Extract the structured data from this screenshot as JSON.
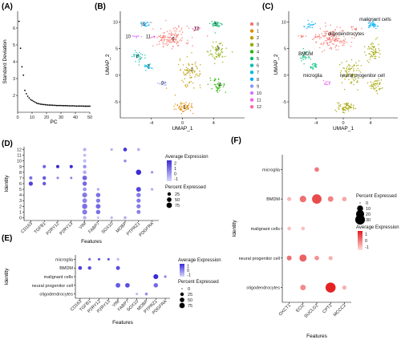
{
  "panels": {
    "a": "(A)",
    "b": "(B)",
    "c": "(C)",
    "d": "(D)",
    "e": "(E)",
    "f": "(F)"
  },
  "colors": {
    "low": "#d8d8ff",
    "high": "#3b2bd6",
    "f_low": "#fde0e0",
    "f_high": "#e31a1c",
    "cluster": [
      "#f8766d",
      "#e68613",
      "#cd9600",
      "#aba300",
      "#7cae00",
      "#0cb702",
      "#00be67",
      "#00c19a",
      "#00bfc4",
      "#00b8e7",
      "#00a9ff",
      "#8494ff",
      "#c77cff",
      "#ed68ed",
      "#ff61cc"
    ]
  },
  "chart_data": [
    {
      "panel": "A",
      "type": "scatter",
      "xlabel": "PC",
      "ylabel": "Standard Deviation",
      "xlim": [
        0,
        50
      ],
      "ylim": [
        1,
        7
      ],
      "xticks": [
        0,
        10,
        20,
        30,
        40,
        50
      ],
      "yticks": [
        2,
        3,
        4,
        5,
        6
      ],
      "x": [
        1,
        2,
        3,
        4,
        5,
        6,
        7,
        8,
        9,
        10,
        11,
        12,
        13,
        14,
        15,
        16,
        17,
        18,
        19,
        20,
        21,
        22,
        23,
        24,
        25,
        26,
        27,
        28,
        29,
        30,
        31,
        32,
        33,
        34,
        35,
        36,
        37,
        38,
        39,
        40,
        41,
        42,
        43,
        44,
        45,
        46,
        47,
        48,
        49,
        50
      ],
      "y": [
        6.4,
        4.8,
        3.7,
        3.2,
        2.3,
        2.1,
        1.95,
        1.85,
        1.75,
        1.7,
        1.65,
        1.6,
        1.55,
        1.52,
        1.5,
        1.48,
        1.47,
        1.46,
        1.45,
        1.44,
        1.43,
        1.43,
        1.42,
        1.42,
        1.41,
        1.41,
        1.4,
        1.4,
        1.4,
        1.4,
        1.39,
        1.39,
        1.39,
        1.39,
        1.38,
        1.38,
        1.38,
        1.38,
        1.38,
        1.37,
        1.37,
        1.37,
        1.37,
        1.37,
        1.37,
        1.36,
        1.36,
        1.36,
        1.36,
        1.36
      ]
    },
    {
      "panel": "B",
      "type": "scatter",
      "xlabel": "UMAP_1",
      "ylabel": "UMAP_2",
      "xticks": [
        -4,
        0,
        4
      ],
      "yticks": [
        -5,
        0,
        5,
        10
      ],
      "xlim": [
        -8,
        8
      ],
      "ylim": [
        -8,
        12
      ],
      "legend": [
        "0",
        "1",
        "2",
        "3",
        "4",
        "5",
        "6",
        "7",
        "8",
        "9",
        "10",
        "11",
        "12"
      ],
      "clusters": [
        {
          "id": "0",
          "cx": -1.5,
          "cy": 7.0,
          "sx": 2.2,
          "sy": 1.8,
          "n": 140
        },
        {
          "id": "1",
          "cx": 0.3,
          "cy": -6.0,
          "sx": 1.1,
          "sy": 0.9,
          "n": 60
        },
        {
          "id": "2",
          "cx": 1.0,
          "cy": 0.5,
          "sx": 1.3,
          "sy": 2.2,
          "n": 80
        },
        {
          "id": "3",
          "cx": 4.5,
          "cy": 4.5,
          "sx": 1.1,
          "sy": 1.6,
          "n": 60
        },
        {
          "id": "4",
          "cx": 4.6,
          "cy": -2.0,
          "sx": 1.0,
          "sy": 1.2,
          "n": 45
        },
        {
          "id": "5",
          "cx": 4.3,
          "cy": 9.5,
          "sx": 0.8,
          "sy": 0.7,
          "n": 35
        },
        {
          "id": "6",
          "cx": -5.6,
          "cy": 3.5,
          "sx": 0.7,
          "sy": 0.9,
          "n": 30
        },
        {
          "id": "7",
          "cx": -4.4,
          "cy": 1.6,
          "sx": 0.6,
          "sy": 0.6,
          "n": 22
        },
        {
          "id": "8",
          "cx": -4.8,
          "cy": 9.5,
          "sx": 0.6,
          "sy": 0.6,
          "n": 20
        },
        {
          "id": "9",
          "cx": -2.5,
          "cy": -1.5,
          "sx": 0.5,
          "sy": 0.4,
          "n": 14
        },
        {
          "id": "10",
          "cx": -6.0,
          "cy": 7.3,
          "sx": 0.6,
          "sy": 0.2,
          "n": 10
        },
        {
          "id": "11",
          "cx": -3.8,
          "cy": 7.2,
          "sx": 0.4,
          "sy": 0.2,
          "n": 8
        },
        {
          "id": "12",
          "cx": 1.8,
          "cy": 8.8,
          "sx": 0.6,
          "sy": 0.4,
          "n": 12
        }
      ],
      "labels": [
        {
          "text": "8",
          "x": -5.0,
          "y": 9.6
        },
        {
          "text": "10",
          "x": -7.0,
          "y": 7.3
        },
        {
          "text": "11",
          "x": -4.4,
          "y": 7.3
        },
        {
          "text": "0",
          "x": -1.2,
          "y": 6.8
        },
        {
          "text": "12",
          "x": 1.8,
          "y": 8.8
        },
        {
          "text": "5",
          "x": 4.3,
          "y": 9.6
        },
        {
          "text": "3",
          "x": 4.6,
          "y": 5.0
        },
        {
          "text": "6",
          "x": -5.8,
          "y": 3.6
        },
        {
          "text": "7",
          "x": -4.4,
          "y": 1.6
        },
        {
          "text": "2",
          "x": 1.2,
          "y": 1.0
        },
        {
          "text": "4",
          "x": 4.8,
          "y": -1.8
        },
        {
          "text": "9",
          "x": -2.6,
          "y": -1.5
        },
        {
          "text": "1",
          "x": 0.3,
          "y": -6.0
        }
      ]
    },
    {
      "panel": "C",
      "type": "scatter",
      "xlabel": "UMAP_1",
      "ylabel": "UMAP_2",
      "xticks": [
        -4,
        0,
        4
      ],
      "yticks": [
        -5,
        0,
        5,
        10
      ],
      "xlim": [
        -8,
        8
      ],
      "ylim": [
        -8,
        12
      ],
      "groups": [
        {
          "name": "oligodendrocytes",
          "color": "#f8766d",
          "clusters": [
            "0",
            "12",
            "10",
            "11"
          ]
        },
        {
          "name": "neural progenitor cell",
          "color": "#a3a500",
          "clusters": [
            "1",
            "2",
            "3",
            "4"
          ]
        },
        {
          "name": "BMDM",
          "color": "#00bf7d",
          "clusters": [
            "6",
            "7"
          ]
        },
        {
          "name": "microglia",
          "color": "#e76bf3",
          "clusters": [
            "9"
          ]
        },
        {
          "name": "malignant cells",
          "color": "#00b0f6",
          "clusters": [
            "5",
            "8"
          ]
        }
      ],
      "labels": [
        {
          "text": "malignant cells",
          "x": 4.7,
          "y": 10.5
        },
        {
          "text": "oligodendrocytes",
          "x": 0.4,
          "y": 7.8
        },
        {
          "text": "BMDM",
          "x": -5.5,
          "y": 4.0
        },
        {
          "text": "microglia",
          "x": -4.5,
          "y": 0.0
        },
        {
          "text": "neural progenitor cell",
          "x": 2.8,
          "y": 0.0
        }
      ]
    },
    {
      "panel": "D",
      "type": "dotplot",
      "xlabel": "Features",
      "ylabel": "Identity",
      "features": [
        "CD163",
        "TGFB1",
        "P2RY12",
        "P2RY13",
        "VIM",
        "FABP7",
        "SOX10",
        "MOBP",
        "PTPRZ1",
        "PDGFRA"
      ],
      "identities": [
        "0",
        "1",
        "2",
        "3",
        "4",
        "5",
        "6",
        "7",
        "8",
        "9",
        "10",
        "11",
        "12"
      ],
      "legend_expr_title": "Average Expression",
      "legend_expr_ticks": [
        "2",
        "1",
        "0",
        "-1"
      ],
      "legend_pct_title": "Percent Expressed",
      "legend_pct_ticks": [
        "25",
        "50",
        "75"
      ],
      "cells": [
        {
          "f": "CD163",
          "i": "6",
          "e": 1.6,
          "p": 40
        },
        {
          "f": "CD163",
          "i": "7",
          "e": 0.8,
          "p": 20
        },
        {
          "f": "TGFB1",
          "i": "6",
          "e": 1.2,
          "p": 25
        },
        {
          "f": "TGFB1",
          "i": "7",
          "e": 1.2,
          "p": 25
        },
        {
          "f": "TGFB1",
          "i": "9",
          "e": 1.0,
          "p": 20
        },
        {
          "f": "P2RY12",
          "i": "9",
          "e": 2.0,
          "p": 20
        },
        {
          "f": "P2RY12",
          "i": "7",
          "e": 0.5,
          "p": 8
        },
        {
          "f": "P2RY13",
          "i": "9",
          "e": 2.0,
          "p": 20
        },
        {
          "f": "P2RY13",
          "i": "7",
          "e": 0.5,
          "p": 8
        },
        {
          "f": "VIM",
          "i": "0",
          "e": -0.3,
          "p": 25
        },
        {
          "f": "VIM",
          "i": "1",
          "e": 0.6,
          "p": 60
        },
        {
          "f": "VIM",
          "i": "2",
          "e": 0.8,
          "p": 70
        },
        {
          "f": "VIM",
          "i": "3",
          "e": 0.5,
          "p": 50
        },
        {
          "f": "VIM",
          "i": "4",
          "e": 0.6,
          "p": 60
        },
        {
          "f": "VIM",
          "i": "5",
          "e": 0.2,
          "p": 30
        },
        {
          "f": "VIM",
          "i": "6",
          "e": 0.9,
          "p": 45
        },
        {
          "f": "VIM",
          "i": "7",
          "e": 1.0,
          "p": 50
        },
        {
          "f": "VIM",
          "i": "8",
          "e": -0.2,
          "p": 25
        },
        {
          "f": "VIM",
          "i": "9",
          "e": 0.2,
          "p": 25
        },
        {
          "f": "VIM",
          "i": "10",
          "e": -0.5,
          "p": 20
        },
        {
          "f": "VIM",
          "i": "11",
          "e": -0.5,
          "p": 15
        },
        {
          "f": "VIM",
          "i": "12",
          "e": -0.3,
          "p": 20
        },
        {
          "f": "FABP7",
          "i": "1",
          "e": 0.8,
          "p": 45
        },
        {
          "f": "FABP7",
          "i": "2",
          "e": 0.9,
          "p": 55
        },
        {
          "f": "FABP7",
          "i": "3",
          "e": 0.6,
          "p": 40
        },
        {
          "f": "FABP7",
          "i": "4",
          "e": 0.8,
          "p": 45
        },
        {
          "f": "FABP7",
          "i": "5",
          "e": -0.2,
          "p": 10
        },
        {
          "f": "FABP7",
          "i": "0",
          "e": -0.5,
          "p": 8
        },
        {
          "f": "SOX10",
          "i": "0",
          "e": -0.4,
          "p": 10
        },
        {
          "f": "SOX10",
          "i": "12",
          "e": -0.3,
          "p": 10
        },
        {
          "f": "MOBP",
          "i": "0",
          "e": -0.3,
          "p": 15
        },
        {
          "f": "MOBP",
          "i": "10",
          "e": 0.4,
          "p": 12
        },
        {
          "f": "MOBP",
          "i": "12",
          "e": 1.8,
          "p": 30
        },
        {
          "f": "PTPRZ1",
          "i": "1",
          "e": 0.5,
          "p": 35
        },
        {
          "f": "PTPRZ1",
          "i": "2",
          "e": 0.6,
          "p": 40
        },
        {
          "f": "PTPRZ1",
          "i": "3",
          "e": 0.6,
          "p": 40
        },
        {
          "f": "PTPRZ1",
          "i": "4",
          "e": 0.6,
          "p": 45
        },
        {
          "f": "PTPRZ1",
          "i": "5",
          "e": 1.5,
          "p": 55
        },
        {
          "f": "PTPRZ1",
          "i": "8",
          "e": 2.0,
          "p": 70
        },
        {
          "f": "PTPRZ1",
          "i": "12",
          "e": -0.3,
          "p": 15
        },
        {
          "f": "PDGFRA",
          "i": "5",
          "e": -0.2,
          "p": 10
        },
        {
          "f": "PDGFRA",
          "i": "8",
          "e": 0.2,
          "p": 10
        }
      ]
    },
    {
      "panel": "E",
      "type": "dotplot",
      "xlabel": "Features",
      "ylabel": "Identity",
      "features": [
        "CD163",
        "TGFB1",
        "P2RY12",
        "P2RY13",
        "VIM",
        "FABP7",
        "SOX10",
        "MOBP",
        "PTPRZ1",
        "PDGFRA"
      ],
      "identities": [
        "oligodendrocytes",
        "neural progenitor cell",
        "malignant cells",
        "BMDM",
        "microglia"
      ],
      "legend_expr_title": "Average Expression",
      "legend_expr_ticks": [
        "1",
        "0",
        "-1"
      ],
      "legend_pct_title": "Percent Expressed",
      "legend_pct_ticks": [
        "0",
        "25",
        "50",
        "75"
      ],
      "cells": [
        {
          "f": "TGFB1",
          "i": "microglia",
          "e": 0.5,
          "p": 10
        },
        {
          "f": "P2RY12",
          "i": "microglia",
          "e": 1.0,
          "p": 8
        },
        {
          "f": "P2RY13",
          "i": "microglia",
          "e": 1.0,
          "p": 8
        },
        {
          "f": "VIM",
          "i": "microglia",
          "e": -0.5,
          "p": 10
        },
        {
          "f": "CD163",
          "i": "BMDM",
          "e": 1.2,
          "p": 30
        },
        {
          "f": "TGFB1",
          "i": "BMDM",
          "e": 1.0,
          "p": 25
        },
        {
          "f": "VIM",
          "i": "BMDM",
          "e": 1.0,
          "p": 35
        },
        {
          "f": "PTPRZ1",
          "i": "malignant cells",
          "e": 1.5,
          "p": 60
        },
        {
          "f": "PDGFRA",
          "i": "malignant cells",
          "e": 0.2,
          "p": 10
        },
        {
          "f": "VIM",
          "i": "neural progenitor cell",
          "e": 0.8,
          "p": 55
        },
        {
          "f": "FABP7",
          "i": "neural progenitor cell",
          "e": 1.0,
          "p": 50
        },
        {
          "f": "PTPRZ1",
          "i": "neural progenitor cell",
          "e": 0.6,
          "p": 45
        },
        {
          "f": "SOX10",
          "i": "oligodendrocytes",
          "e": -0.5,
          "p": 8
        },
        {
          "f": "MOBP",
          "i": "oligodendrocytes",
          "e": 0.0,
          "p": 15
        }
      ]
    },
    {
      "panel": "F",
      "type": "dotplot",
      "xlabel": "Features",
      "ylabel": "Identity",
      "features": [
        "OXCT1",
        "ECI2",
        "SUCLG2",
        "CPT2",
        "MCCC2"
      ],
      "identities": [
        "oligodendrocytes",
        "neural progenitor cell",
        "malignant cells",
        "BMDM",
        "microglia"
      ],
      "legend_pct_title": "Percent Expressed",
      "legend_pct_ticks": [
        "0",
        "10",
        "20",
        "30"
      ],
      "legend_expr_title": "Average Expression",
      "legend_expr_ticks": [
        "1",
        "0",
        "-1"
      ],
      "cells": [
        {
          "f": "OXCT1",
          "i": "BMDM",
          "e": -0.5,
          "p": 4
        },
        {
          "f": "ECI2",
          "i": "BMDM",
          "e": 0.4,
          "p": 12
        },
        {
          "f": "SUCLG2",
          "i": "BMDM",
          "e": 0.9,
          "p": 28
        },
        {
          "f": "CPT2",
          "i": "BMDM",
          "e": 0.2,
          "p": 8
        },
        {
          "f": "MCCC2",
          "i": "BMDM",
          "e": -0.3,
          "p": 5
        },
        {
          "f": "SUCLG2",
          "i": "microglia",
          "e": 0.3,
          "p": 5
        },
        {
          "f": "OXCT1",
          "i": "malignant cells",
          "e": -0.6,
          "p": 3
        },
        {
          "f": "ECI2",
          "i": "malignant cells",
          "e": -0.6,
          "p": 3
        },
        {
          "f": "OXCT1",
          "i": "neural progenitor cell",
          "e": 0.4,
          "p": 6
        },
        {
          "f": "ECI2",
          "i": "neural progenitor cell",
          "e": 0.6,
          "p": 15
        },
        {
          "f": "SUCLG2",
          "i": "neural progenitor cell",
          "e": 0.0,
          "p": 5
        },
        {
          "f": "CPT2",
          "i": "neural progenitor cell",
          "e": -0.4,
          "p": 4
        },
        {
          "f": "ECI2",
          "i": "oligodendrocytes",
          "e": 0.1,
          "p": 8
        },
        {
          "f": "CPT2",
          "i": "oligodendrocytes",
          "e": 1.4,
          "p": 32
        },
        {
          "f": "MCCC2",
          "i": "oligodendrocytes",
          "e": -0.4,
          "p": 4
        }
      ]
    }
  ]
}
